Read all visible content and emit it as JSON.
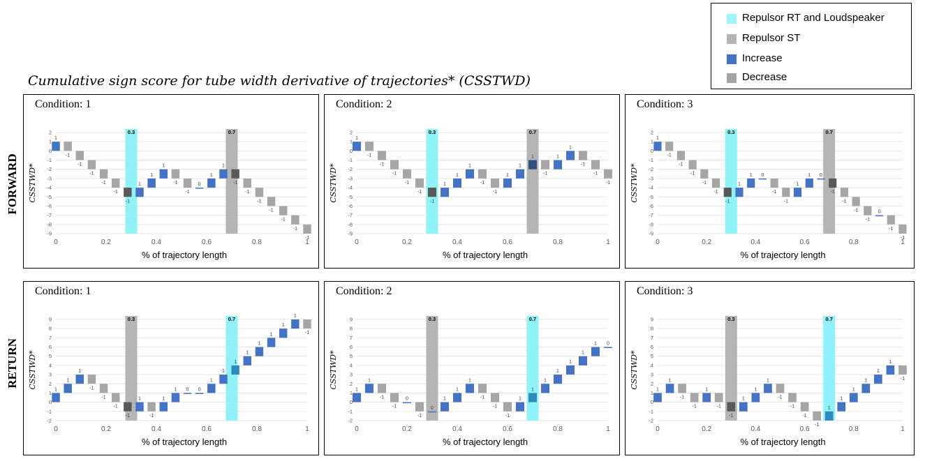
{
  "main_title": "Cumulative sign score for tube width derivative of trajectories* (CSSTWD)",
  "row_labels": {
    "forward": "FORWARD",
    "return": "RETURN"
  },
  "colors": {
    "increase": "#4472c4",
    "decrease": "#a6a6a6",
    "repulsor_rt": "#8ff3f7",
    "repulsor_st": "#b5b5b5",
    "dark_decrease": "#595959",
    "grid": "#e6e6e6"
  },
  "legend": {
    "items": [
      {
        "label": "Repulsor RT and Loudspeaker",
        "color": "#9ff5f7"
      },
      {
        "label": "Repulsor ST",
        "color": "#b5b5b5"
      },
      {
        "label": "Increase",
        "color": "#4472c4"
      },
      {
        "label": "Decrease",
        "color": "#a6a6a6"
      }
    ]
  },
  "chart_data": [
    {
      "type": "bar",
      "subtype": "waterfall",
      "title": "Condition: 1",
      "direction": "FORWARD",
      "xlabel": "% of trajectory length",
      "ylabel": "CSSTWD*",
      "ylim": [
        -9,
        2
      ],
      "yticks": [
        2,
        1,
        0,
        -1,
        -2,
        -3,
        -4,
        -5,
        -6,
        -7,
        -8,
        -9
      ],
      "xlim": [
        0,
        1
      ],
      "xticks": [
        0,
        0.2,
        0.4,
        0.6,
        0.8,
        1
      ],
      "xticklabels": [
        "0",
        "0.2",
        "0.4",
        "0.6",
        "0.8",
        "1"
      ],
      "bands": [
        {
          "x": 0.3,
          "label": "0.3",
          "kind": "RT"
        },
        {
          "x": 0.7,
          "label": "0.7",
          "kind": "ST"
        }
      ],
      "steps": [
        1,
        -1,
        -1,
        -1,
        -1,
        -1,
        -1,
        1,
        1,
        1,
        -1,
        -1,
        0,
        1,
        1,
        -1,
        -1,
        -1,
        -1,
        -1,
        -1,
        -1
      ]
    },
    {
      "type": "bar",
      "subtype": "waterfall",
      "title": "Condition: 2",
      "direction": "FORWARD",
      "xlabel": "% of trajectory length",
      "ylabel": "CSSTWD*",
      "ylim": [
        -9,
        2
      ],
      "yticks": [
        2,
        1,
        0,
        -1,
        -2,
        -3,
        -4,
        -5,
        -6,
        -7,
        -8,
        -9
      ],
      "xlim": [
        0,
        1
      ],
      "xticks": [
        0,
        0.2,
        0.4,
        0.6,
        0.8,
        1
      ],
      "xticklabels": [
        "0",
        "0.2",
        "0.4",
        "0.6",
        "0.8",
        "1"
      ],
      "bands": [
        {
          "x": 0.3,
          "label": "0.3",
          "kind": "RT"
        },
        {
          "x": 0.7,
          "label": "0.7",
          "kind": "ST"
        }
      ],
      "steps": [
        1,
        -1,
        -1,
        -1,
        -1,
        -1,
        -1,
        1,
        1,
        1,
        -1,
        -1,
        1,
        1,
        1,
        -1,
        1,
        1,
        -1,
        -1,
        -1
      ]
    },
    {
      "type": "bar",
      "subtype": "waterfall",
      "title": "Condition: 3",
      "direction": "FORWARD",
      "xlabel": "% of trajectory length",
      "ylabel": "CSSTWD*",
      "ylim": [
        -9,
        2
      ],
      "yticks": [
        2,
        1,
        0,
        -1,
        -2,
        -3,
        -4,
        -5,
        -6,
        -7,
        -8,
        -9
      ],
      "xlim": [
        0,
        1
      ],
      "xticks": [
        0,
        0.2,
        0.4,
        0.6,
        0.8,
        1
      ],
      "xticklabels": [
        "0",
        "0.2",
        "0.4",
        "0.6",
        "0.8",
        "1"
      ],
      "bands": [
        {
          "x": 0.3,
          "label": "0.3",
          "kind": "RT"
        },
        {
          "x": 0.7,
          "label": "0.7",
          "kind": "ST"
        }
      ],
      "steps": [
        1,
        -1,
        -1,
        -1,
        -1,
        -1,
        -1,
        1,
        1,
        0,
        -1,
        -1,
        1,
        1,
        0,
        -1,
        -1,
        -1,
        -1,
        0,
        -1,
        -1
      ]
    },
    {
      "type": "bar",
      "subtype": "waterfall",
      "title": "Condition: 1",
      "direction": "RETURN",
      "xlabel": "% of trajectory length",
      "ylabel": "CSSTWD*",
      "ylim": [
        -2,
        9
      ],
      "yticks": [
        9,
        8,
        7,
        6,
        5,
        4,
        3,
        2,
        1,
        0,
        -1,
        -2
      ],
      "xlim": [
        0,
        1
      ],
      "xticks": [
        0,
        0.2,
        0.4,
        0.6,
        0.8,
        1
      ],
      "xticklabels": [
        "0",
        "0.2",
        "0.4",
        "0.6",
        "0.8",
        "1"
      ],
      "bands": [
        {
          "x": 0.3,
          "label": "0.3",
          "kind": "ST"
        },
        {
          "x": 0.7,
          "label": "0.7",
          "kind": "RT"
        }
      ],
      "steps": [
        1,
        1,
        1,
        -1,
        -1,
        -1,
        -1,
        1,
        -1,
        1,
        1,
        0,
        0,
        1,
        1,
        1,
        1,
        1,
        1,
        1,
        1,
        -1
      ]
    },
    {
      "type": "bar",
      "subtype": "waterfall",
      "title": "Condition: 2",
      "direction": "RETURN",
      "xlabel": "% of trajectory length",
      "ylabel": "CSSTWD*",
      "ylim": [
        -2,
        9
      ],
      "yticks": [
        9,
        8,
        7,
        6,
        5,
        4,
        3,
        2,
        1,
        0,
        -1,
        -2
      ],
      "xlim": [
        0,
        1
      ],
      "xticks": [
        0,
        0.2,
        0.4,
        0.6,
        0.8,
        1
      ],
      "xticklabels": [
        "0",
        "0.2",
        "0.4",
        "0.6",
        "0.8",
        "1"
      ],
      "bands": [
        {
          "x": 0.3,
          "label": "0.3",
          "kind": "ST"
        },
        {
          "x": 0.7,
          "label": "0.7",
          "kind": "RT"
        }
      ],
      "steps": [
        1,
        1,
        -1,
        -1,
        0,
        -1,
        0,
        1,
        1,
        1,
        -1,
        -1,
        -1,
        1,
        1,
        1,
        1,
        1,
        1,
        1,
        0
      ]
    },
    {
      "type": "bar",
      "subtype": "waterfall",
      "title": "Condition: 3",
      "direction": "RETURN",
      "xlabel": "% of trajectory length",
      "ylabel": "CSSTWD*",
      "ylim": [
        -2,
        9
      ],
      "yticks": [
        9,
        8,
        7,
        6,
        5,
        4,
        3,
        2,
        1,
        0,
        -1,
        -2
      ],
      "xlim": [
        0,
        1
      ],
      "xticks": [
        0,
        0.2,
        0.4,
        0.6,
        0.8,
        1
      ],
      "xticklabels": [
        "0",
        "0.2",
        "0.4",
        "0.6",
        "0.8",
        "1"
      ],
      "bands": [
        {
          "x": 0.3,
          "label": "0.3",
          "kind": "ST"
        },
        {
          "x": 0.7,
          "label": "0.7",
          "kind": "RT"
        }
      ],
      "steps": [
        1,
        1,
        -1,
        -1,
        1,
        -1,
        -1,
        1,
        1,
        1,
        -1,
        -1,
        -1,
        -1,
        1,
        1,
        1,
        1,
        1,
        1,
        -1
      ]
    }
  ]
}
